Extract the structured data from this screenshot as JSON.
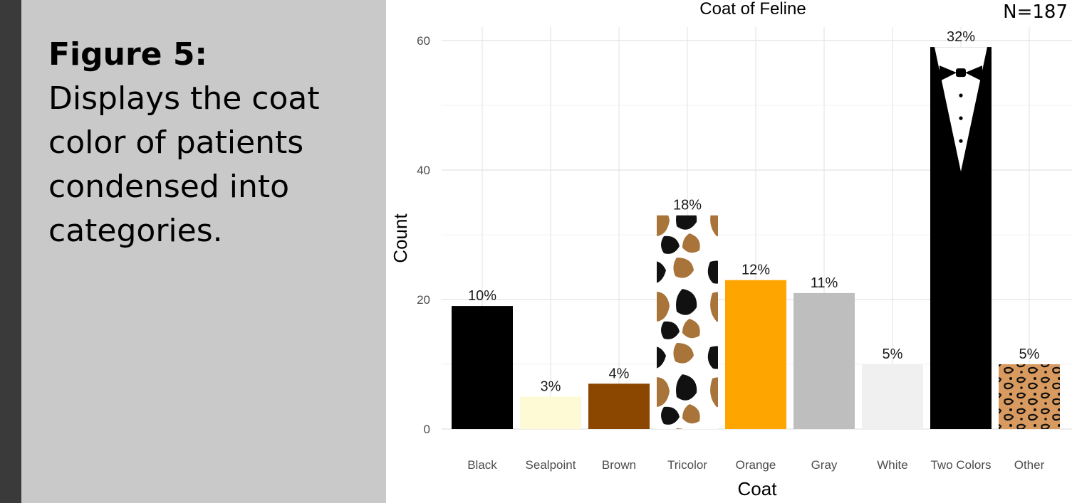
{
  "caption": {
    "label": "Figure 5:",
    "text": "Displays the coat color of patients condensed into categories."
  },
  "chart_data": {
    "type": "bar",
    "title": "Coat of Feline",
    "xlabel": "Coat",
    "ylabel": "Count",
    "ylim": [
      0,
      60
    ],
    "yticks": [
      0,
      20,
      40,
      60
    ],
    "grid": true,
    "annotation": "N=187",
    "categories": [
      "Black",
      "Sealpoint",
      "Brown",
      "Tricolor",
      "Orange",
      "Gray",
      "White",
      "Two Colors",
      "Other"
    ],
    "values": [
      19,
      5,
      7,
      33,
      23,
      21,
      10,
      59,
      10
    ],
    "labels": [
      "10%",
      "3%",
      "4%",
      "18%",
      "12%",
      "11%",
      "5%",
      "32%",
      "5%"
    ],
    "colors": [
      "#000000",
      "#fffad6",
      "#8b4700",
      "tricolor-pattern",
      "#ffa500",
      "#bebebe",
      "#f0f0f0",
      "tuxedo-pattern",
      "leopard-pattern"
    ]
  }
}
